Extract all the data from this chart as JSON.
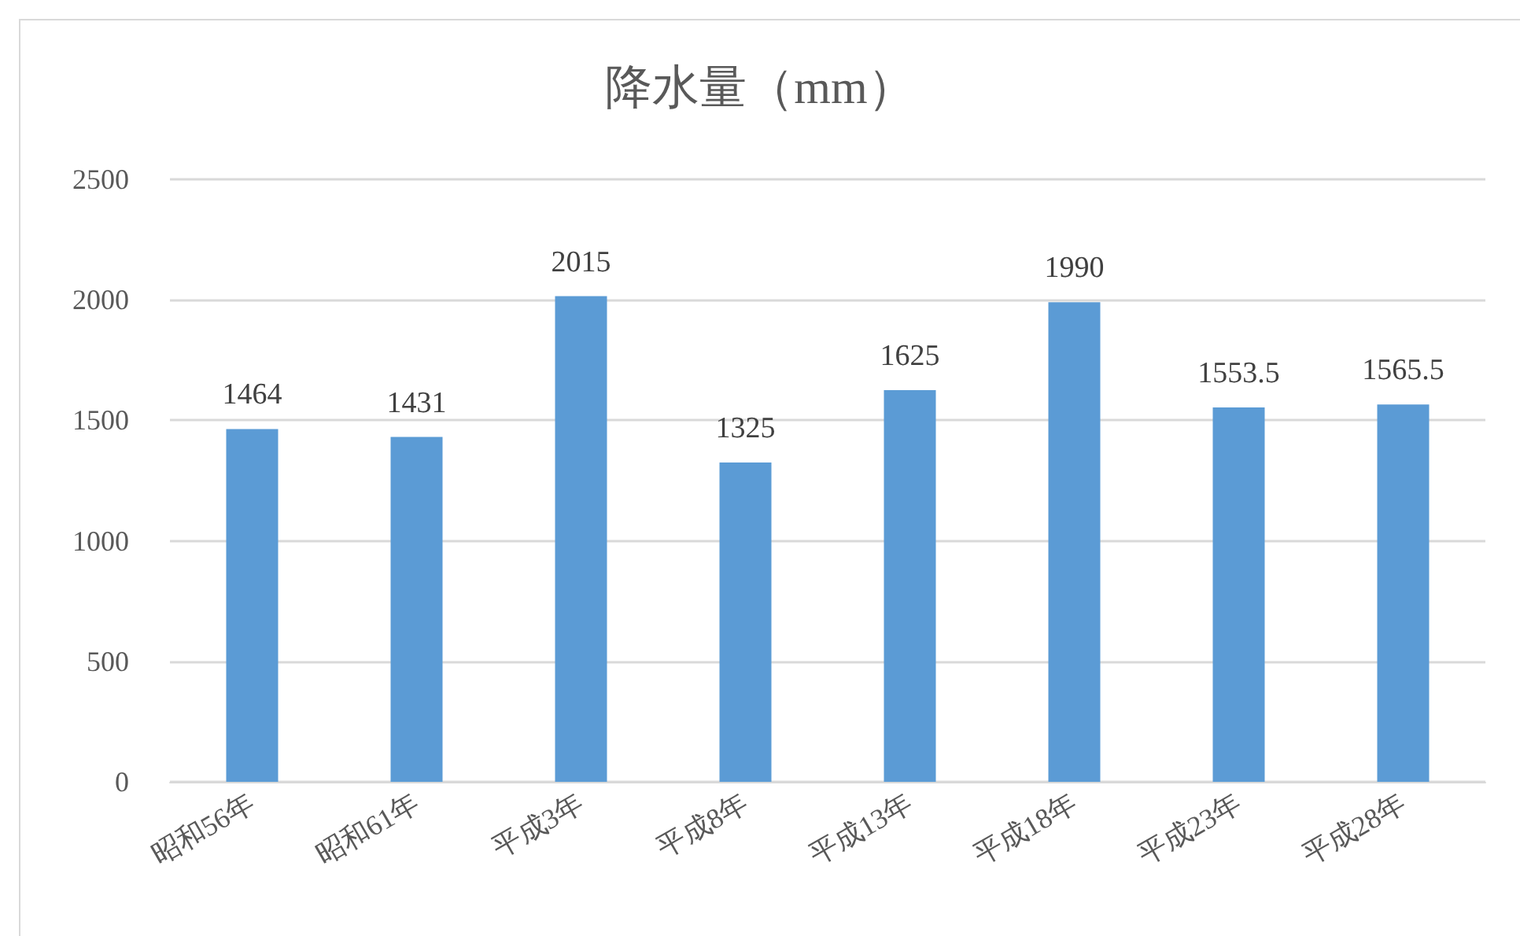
{
  "chart_data": {
    "type": "bar",
    "title": "降水量（mm）",
    "categories": [
      "昭和56年",
      "昭和61年",
      "平成3年",
      "平成8年",
      "平成13年",
      "平成18年",
      "平成23年",
      "平成28年"
    ],
    "values": [
      1464,
      1431,
      2015,
      1325,
      1625,
      1990,
      1553.5,
      1565.5
    ],
    "color": "#5b9bd5",
    "ylim": [
      0,
      2500
    ],
    "yticks": [
      0,
      500,
      1000,
      1500,
      2000,
      2500
    ],
    "grid": "y",
    "data_labels": true
  }
}
